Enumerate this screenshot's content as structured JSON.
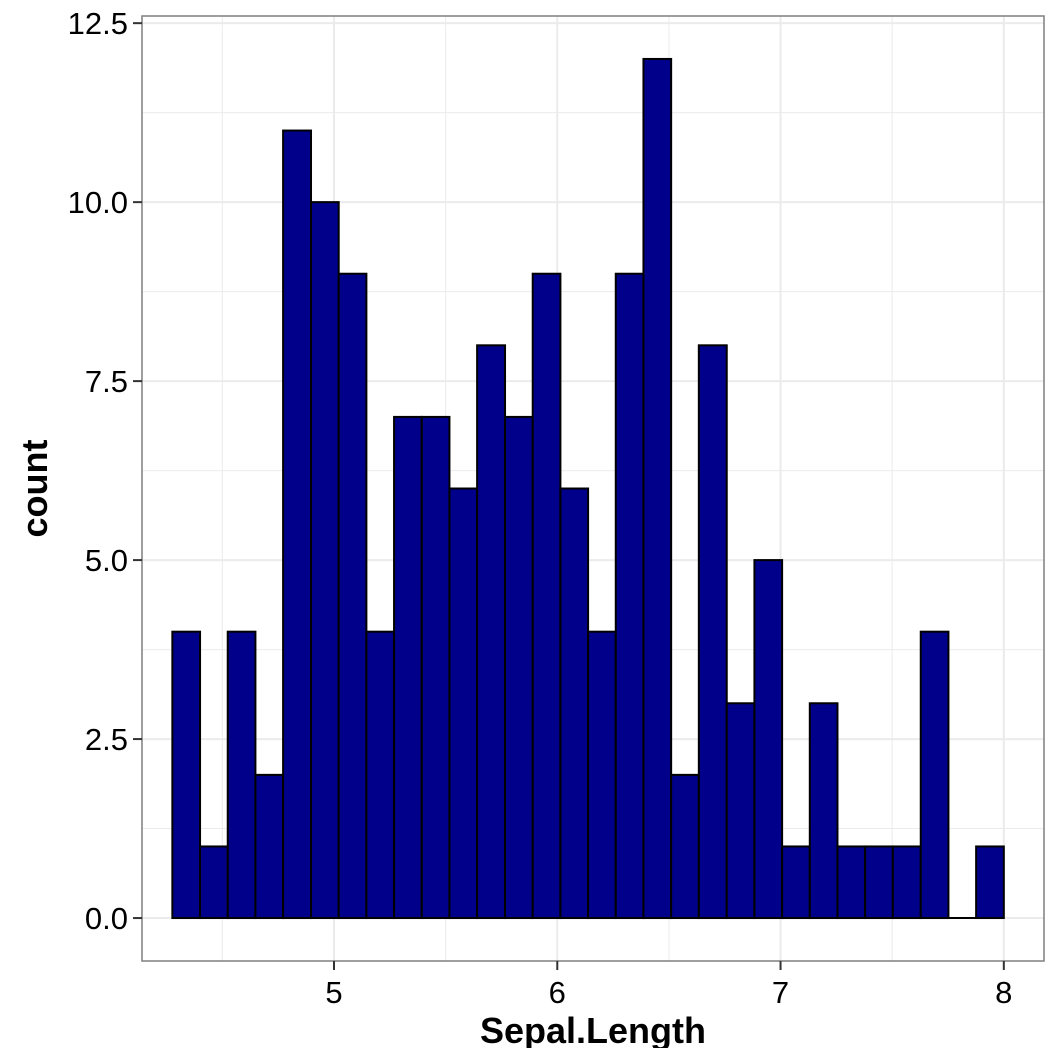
{
  "chart_data": {
    "type": "bar",
    "subtype": "histogram",
    "title": "",
    "xlabel": "Sepal.Length",
    "ylabel": "count",
    "xlim": [
      4.14,
      8.18
    ],
    "ylim": [
      -0.6,
      12.6
    ],
    "x_ticks": [
      5,
      6,
      7,
      8
    ],
    "x_tick_labels": [
      "5",
      "6",
      "7",
      "8"
    ],
    "y_ticks": [
      0,
      2.5,
      5,
      7.5,
      10,
      12.5
    ],
    "y_tick_labels": [
      "0.0",
      "2.5",
      "5.0",
      "7.5",
      "10.0",
      "12.5"
    ],
    "bin_width": 0.1241,
    "bins": [
      {
        "x0": 4.276,
        "x1": 4.4,
        "count": 4
      },
      {
        "x0": 4.4,
        "x1": 4.524,
        "count": 1
      },
      {
        "x0": 4.524,
        "x1": 4.648,
        "count": 4
      },
      {
        "x0": 4.648,
        "x1": 4.772,
        "count": 2
      },
      {
        "x0": 4.772,
        "x1": 4.897,
        "count": 11
      },
      {
        "x0": 4.897,
        "x1": 5.021,
        "count": 10
      },
      {
        "x0": 5.021,
        "x1": 5.145,
        "count": 9
      },
      {
        "x0": 5.145,
        "x1": 5.269,
        "count": 4
      },
      {
        "x0": 5.269,
        "x1": 5.393,
        "count": 7
      },
      {
        "x0": 5.393,
        "x1": 5.517,
        "count": 7
      },
      {
        "x0": 5.517,
        "x1": 5.641,
        "count": 6
      },
      {
        "x0": 5.641,
        "x1": 5.766,
        "count": 8
      },
      {
        "x0": 5.766,
        "x1": 5.89,
        "count": 7
      },
      {
        "x0": 5.89,
        "x1": 6.014,
        "count": 9
      },
      {
        "x0": 6.014,
        "x1": 6.138,
        "count": 6
      },
      {
        "x0": 6.138,
        "x1": 6.262,
        "count": 4
      },
      {
        "x0": 6.262,
        "x1": 6.386,
        "count": 9
      },
      {
        "x0": 6.386,
        "x1": 6.51,
        "count": 12
      },
      {
        "x0": 6.51,
        "x1": 6.634,
        "count": 2
      },
      {
        "x0": 6.634,
        "x1": 6.759,
        "count": 8
      },
      {
        "x0": 6.759,
        "x1": 6.883,
        "count": 3
      },
      {
        "x0": 6.883,
        "x1": 7.007,
        "count": 5
      },
      {
        "x0": 7.007,
        "x1": 7.131,
        "count": 1
      },
      {
        "x0": 7.131,
        "x1": 7.255,
        "count": 3
      },
      {
        "x0": 7.255,
        "x1": 7.379,
        "count": 1
      },
      {
        "x0": 7.379,
        "x1": 7.503,
        "count": 1
      },
      {
        "x0": 7.503,
        "x1": 7.628,
        "count": 1
      },
      {
        "x0": 7.628,
        "x1": 7.752,
        "count": 4
      },
      {
        "x0": 7.752,
        "x1": 7.876,
        "count": 0
      },
      {
        "x0": 7.876,
        "x1": 8.0,
        "count": 1
      }
    ],
    "grid": true,
    "legend": "none",
    "bar_fill": "#00008b",
    "bar_stroke": "#000000",
    "background": "#ffffff",
    "grid_color": "#ebebeb",
    "panel_border_color": "#7f7f7f"
  }
}
